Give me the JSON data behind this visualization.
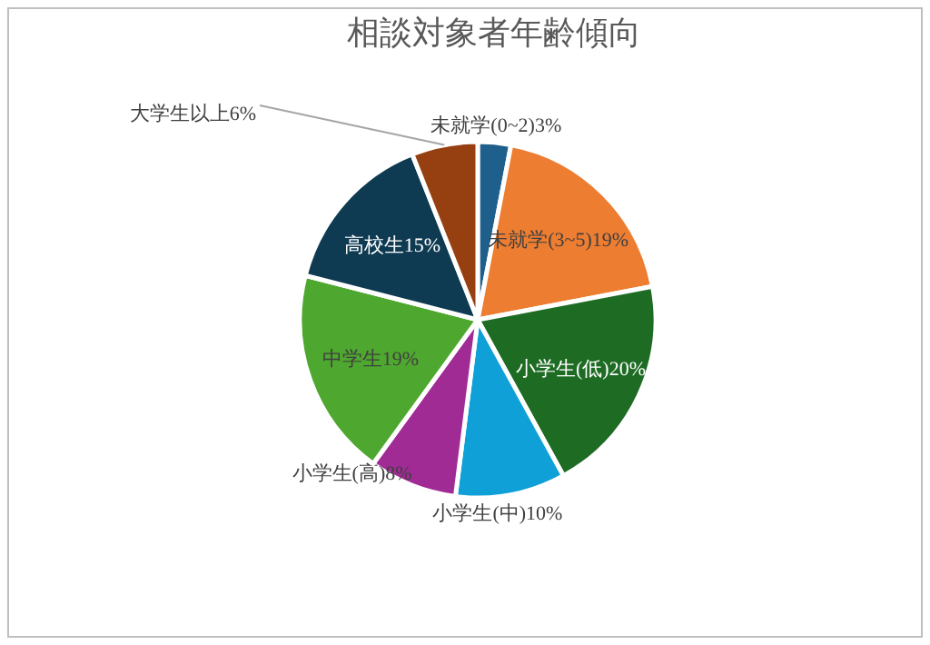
{
  "chart_data": {
    "type": "pie",
    "title": "相談対象者年齢傾向",
    "categories": [
      "未就学(0~2)",
      "未就学(3~5)",
      "小学生(低)",
      "小学生(中)",
      "小学生(高)",
      "中学生",
      "高校生",
      "大学生以上"
    ],
    "values": [
      3,
      19,
      20,
      10,
      8,
      19,
      15,
      6
    ],
    "value_labels": [
      "3%",
      "19%",
      "20%",
      "10%",
      "8%",
      "19%",
      "15%",
      "6%"
    ],
    "colors": [
      "#1f5f8b",
      "#ed7d31",
      "#1e6b24",
      "#10a0d8",
      "#a12b95",
      "#4ea72e",
      "#0e3a52",
      "#964011"
    ]
  }
}
